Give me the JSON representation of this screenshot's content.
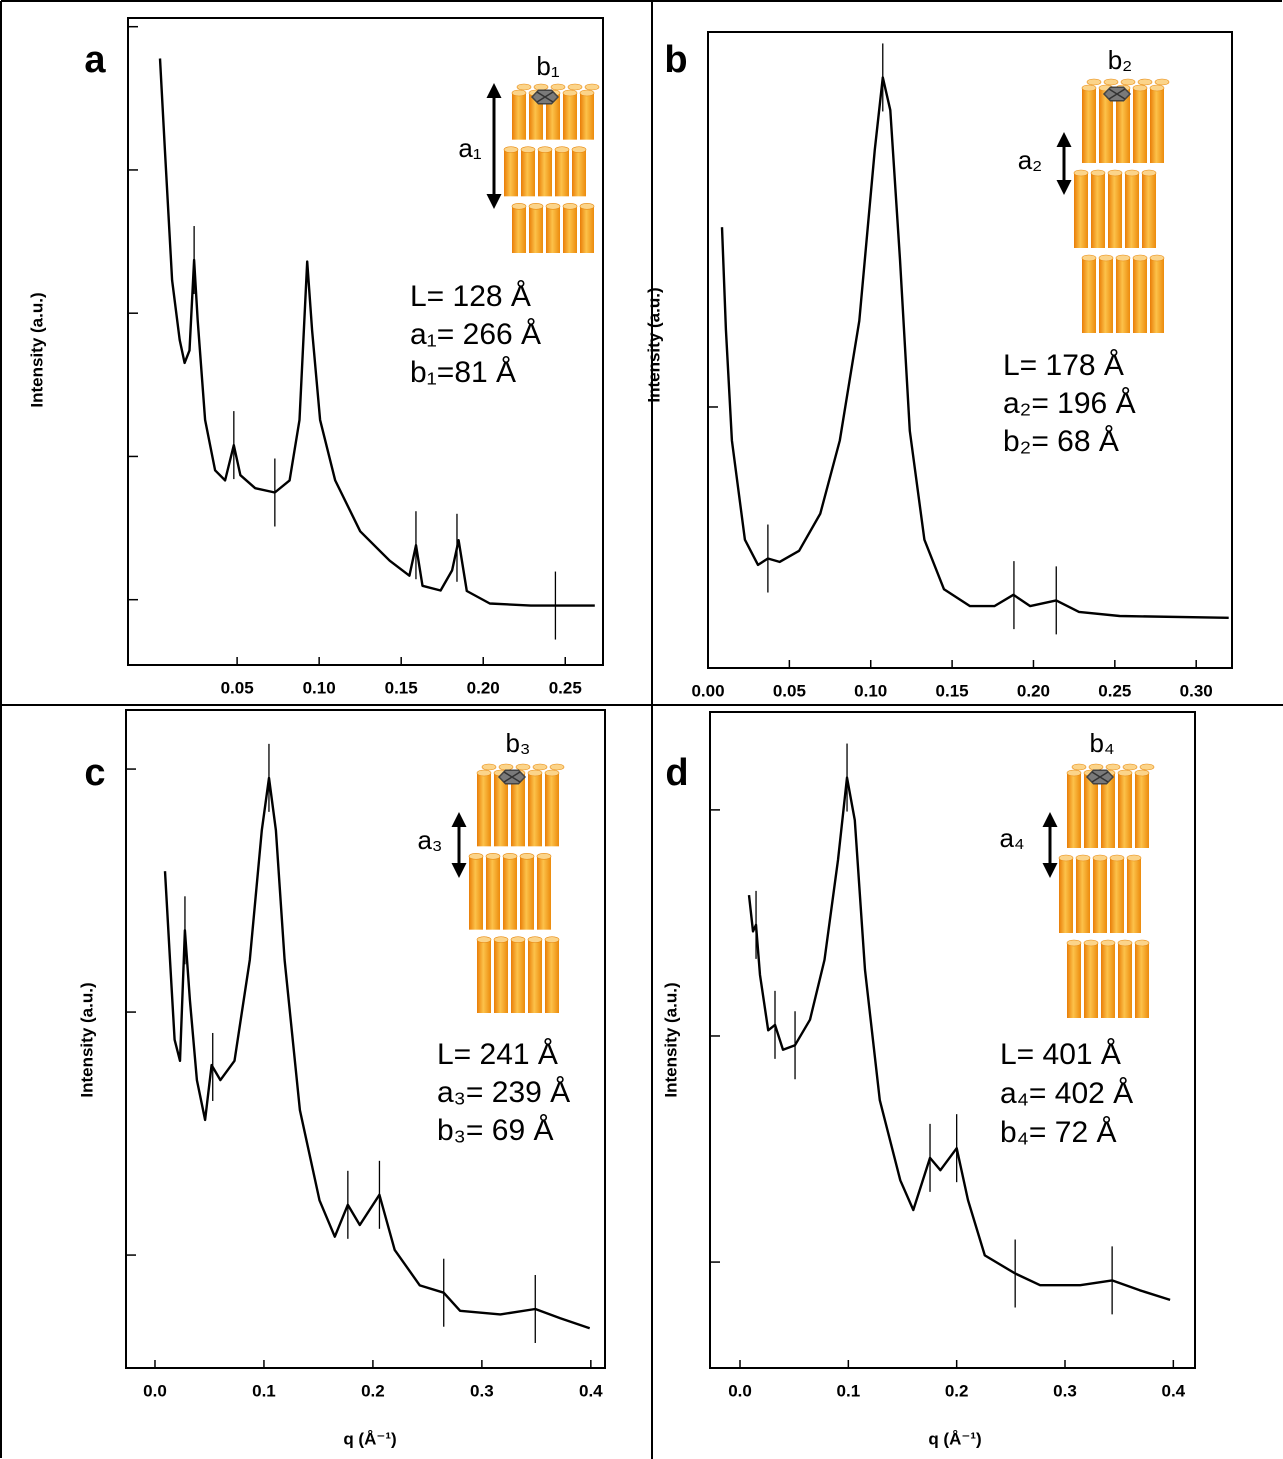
{
  "chart_data": [
    {
      "type": "line",
      "panel": "a",
      "ylabel": "Intensity (a.u.)",
      "yscale": "log",
      "color": "#000000",
      "xlim": [
        -0.0165,
        0.273
      ],
      "ylim": [
        0.35,
        11500
      ],
      "xticks": [
        0.05,
        {
          "value": 0.1,
          "label": "0.10"
        },
        0.15,
        {
          "value": 0.2,
          "label": "0.20"
        },
        0.25
      ],
      "yticks": [
        1,
        10,
        100,
        1000,
        10000
      ],
      "x": [
        0.003,
        0.006,
        0.0104,
        0.015,
        0.018,
        0.021,
        0.0238,
        0.026,
        0.0305,
        0.0366,
        0.0427,
        0.048,
        0.052,
        0.061,
        0.073,
        0.082,
        0.088,
        0.0927,
        0.0957,
        0.1006,
        0.1098,
        0.125,
        0.143,
        0.155,
        0.159,
        0.163,
        0.174,
        0.181,
        0.185,
        0.19,
        0.204,
        0.229,
        0.247,
        0.268
      ],
      "values": [
        6000,
        1380,
        170,
        65,
        45,
        55,
        235,
        89,
        18,
        8,
        6.8,
        12,
        7.4,
        6.0,
        5.6,
        6.8,
        18,
        229,
        76,
        18,
        6.8,
        3.0,
        1.87,
        1.47,
        2.4,
        1.25,
        1.16,
        1.6,
        2.6,
        1.15,
        0.94,
        0.91,
        0.91,
        0.91
      ],
      "markers": [
        0.0238,
        0.048,
        0.073,
        0.159,
        0.184,
        0.244
      ],
      "annotations": [
        "L= 128 Å",
        "a₁= 266 Å",
        "b₁=81 Å"
      ],
      "inset": {
        "a_label": "a₁",
        "b_label": "b₁"
      }
    },
    {
      "type": "line",
      "panel": "b",
      "ylabel": "Intensity (a.u.)",
      "yscale": "log",
      "color": "#000000",
      "xlim": [
        0,
        0.322
      ],
      "ylim": [
        4.03,
        36.9
      ],
      "xticks": [
        {
          "value": 0,
          "label": "0.00"
        },
        0.05,
        {
          "value": 0.1,
          "label": "0.10"
        },
        0.15,
        {
          "value": 0.2,
          "label": "0.20"
        },
        0.25,
        {
          "value": 0.3,
          "label": "0.30"
        }
      ],
      "yticks": [
        10
      ],
      "x": [
        0.0086,
        0.011,
        0.0147,
        0.0227,
        0.0307,
        0.0368,
        0.044,
        0.056,
        0.069,
        0.081,
        0.093,
        0.1025,
        0.1074,
        0.112,
        0.118,
        0.124,
        0.133,
        0.145,
        0.161,
        0.176,
        0.1877,
        0.198,
        0.214,
        0.228,
        0.253,
        0.32
      ],
      "values": [
        18.7,
        13.1,
        8.9,
        6.3,
        5.77,
        5.9,
        5.83,
        6.06,
        6.9,
        8.9,
        13.5,
        24.5,
        31.5,
        28.1,
        16.7,
        9.2,
        6.3,
        5.3,
        5.0,
        5.0,
        5.2,
        5.0,
        5.1,
        4.9,
        4.83,
        4.8
      ],
      "markers": [
        0.0368,
        0.1074,
        0.188,
        0.214
      ],
      "annotations": [
        "L= 178 Å",
        "a₂= 196 Å",
        "b₂= 68 Å"
      ],
      "inset": {
        "a_label": "a₂",
        "b_label": "b₂"
      }
    },
    {
      "type": "line",
      "panel": "c",
      "ylabel": "Intensity (a.u.)",
      "xlabel": "q (Å⁻¹)",
      "yscale": "log",
      "color": "#000000",
      "xlim": [
        -0.0266,
        0.413
      ],
      "ylim": [
        0.343,
        175
      ],
      "xticks": [
        {
          "value": 0,
          "label": "0.0"
        },
        0.1,
        0.2,
        0.3,
        0.4
      ],
      "yticks": [
        1,
        10,
        100
      ],
      "x": [
        0.0092,
        0.0138,
        0.018,
        0.023,
        0.0275,
        0.032,
        0.0385,
        0.046,
        0.052,
        0.06,
        0.073,
        0.087,
        0.098,
        0.1046,
        0.111,
        0.119,
        0.133,
        0.151,
        0.165,
        0.177,
        0.188,
        0.206,
        0.22,
        0.243,
        0.265,
        0.28,
        0.317,
        0.349,
        0.372,
        0.399
      ],
      "values": [
        38,
        16.4,
        7.7,
        6.3,
        21.7,
        11.2,
        5.25,
        3.6,
        6.05,
        5.25,
        6.3,
        16.4,
        56,
        92,
        56,
        16.4,
        3.95,
        1.68,
        1.19,
        1.61,
        1.33,
        1.77,
        1.05,
        0.75,
        0.7,
        0.59,
        0.57,
        0.6,
        0.55,
        0.5
      ],
      "markers": [
        0.0275,
        0.053,
        0.1046,
        0.177,
        0.206,
        0.265,
        0.349
      ],
      "annotations": [
        "L= 241 Å",
        "a₃= 239 Å",
        "b₃= 69 Å"
      ],
      "inset": {
        "a_label": "a₃",
        "b_label": "b₃"
      }
    },
    {
      "type": "line",
      "panel": "d",
      "ylabel": "Intensity (a.u.)",
      "xlabel": "q (Å⁻¹)",
      "yscale": "log",
      "color": "#000000",
      "xlim": [
        -0.0277,
        0.42
      ],
      "ylim": [
        0.34,
        271
      ],
      "xticks": [
        {
          "value": 0,
          "label": "0.0"
        },
        0.1,
        0.2,
        0.3,
        0.4
      ],
      "yticks": [
        1,
        10,
        100
      ],
      "x": [
        0.0083,
        0.012,
        0.0148,
        0.0185,
        0.026,
        0.0323,
        0.0397,
        0.0508,
        0.0646,
        0.078,
        0.0905,
        0.0988,
        0.106,
        0.1154,
        0.129,
        0.148,
        0.16,
        0.1754,
        0.185,
        0.2,
        0.2105,
        0.226,
        0.254,
        0.277,
        0.314,
        0.3435,
        0.369,
        0.397
      ],
      "values": [
        42,
        29,
        31,
        18.6,
        10.6,
        11.2,
        8.7,
        9.1,
        11.8,
        21.7,
        60,
        139,
        90,
        19.6,
        5.2,
        2.3,
        1.7,
        2.89,
        2.55,
        3.19,
        1.88,
        1.07,
        0.89,
        0.79,
        0.79,
        0.83,
        0.75,
        0.68
      ],
      "markers": [
        0.0148,
        0.0323,
        0.0508,
        0.0988,
        0.1754,
        0.2,
        0.254,
        0.3435
      ],
      "annotations": [
        "L= 401 Å",
        "a₄= 402 Å",
        "b₄= 72 Å"
      ],
      "inset": {
        "a_label": "a₄",
        "b_label": "b₄"
      }
    }
  ]
}
